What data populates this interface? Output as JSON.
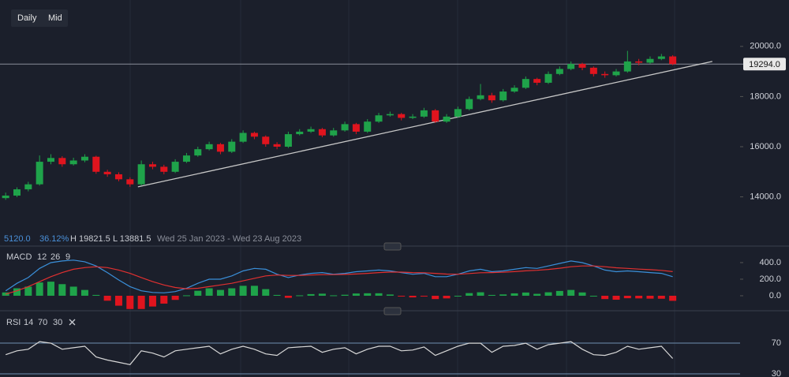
{
  "buttons": [
    "Daily",
    "Mid"
  ],
  "chart_data": [
    {
      "type": "candlestick",
      "up_color": "#1fa34a",
      "down_color": "#e0141e",
      "ylim": [
        12100,
        21850
      ],
      "yticks": [
        {
          "value": 14000,
          "label": "14000.0"
        },
        {
          "value": 16000,
          "label": "16000.0"
        },
        {
          "value": 18000,
          "label": "18000.0"
        },
        {
          "value": 20000,
          "label": "20000.0"
        }
      ],
      "grid": false,
      "last_price": {
        "value": 19294,
        "label": "19294.0"
      },
      "info": {
        "change": "5120.0",
        "change_pct": "36.12%",
        "high": "H 19821.5",
        "low": "L 13881.5",
        "range": "Wed 25 Jan 2023 - Wed 23 Aug 2023"
      },
      "trendline": {
        "x": [
          11.7,
          62.5
        ],
        "y": [
          14400,
          19400
        ],
        "color": "#c8c8c8"
      },
      "candles": [
        [
          13950,
          14170,
          13881.5,
          14050
        ],
        [
          14050,
          14380,
          13990,
          14300
        ],
        [
          14300,
          14600,
          14220,
          14500
        ],
        [
          14500,
          15650,
          14450,
          15400
        ],
        [
          15400,
          15700,
          15300,
          15550
        ],
        [
          15550,
          15620,
          15200,
          15300
        ],
        [
          15300,
          15560,
          15250,
          15450
        ],
        [
          15450,
          15700,
          15380,
          15600
        ],
        [
          15600,
          15640,
          14920,
          15000
        ],
        [
          15000,
          15080,
          14800,
          14900
        ],
        [
          14900,
          14980,
          14620,
          14700
        ],
        [
          14700,
          14780,
          14400,
          14500
        ],
        [
          14500,
          15450,
          14450,
          15300
        ],
        [
          15300,
          15400,
          15100,
          15200
        ],
        [
          15200,
          15280,
          14900,
          15000
        ],
        [
          15000,
          15500,
          14950,
          15400
        ],
        [
          15400,
          15750,
          15350,
          15650
        ],
        [
          15650,
          16000,
          15600,
          15900
        ],
        [
          15900,
          16200,
          15850,
          16100
        ],
        [
          16100,
          16150,
          15700,
          15800
        ],
        [
          15800,
          16300,
          15750,
          16200
        ],
        [
          16200,
          16650,
          16150,
          16550
        ],
        [
          16550,
          16600,
          16300,
          16400
        ],
        [
          16400,
          16450,
          16000,
          16100
        ],
        [
          16100,
          16180,
          15900,
          16000
        ],
        [
          16000,
          16600,
          15950,
          16500
        ],
        [
          16500,
          16700,
          16450,
          16600
        ],
        [
          16600,
          16800,
          16550,
          16700
        ],
        [
          16700,
          16750,
          16380,
          16450
        ],
        [
          16450,
          16750,
          16400,
          16650
        ],
        [
          16650,
          17000,
          16600,
          16900
        ],
        [
          16900,
          16950,
          16500,
          16600
        ],
        [
          16600,
          17100,
          16550,
          17000
        ],
        [
          17000,
          17350,
          16950,
          17250
        ],
        [
          17250,
          17400,
          17200,
          17300
        ],
        [
          17300,
          17350,
          17050,
          17150
        ],
        [
          17150,
          17300,
          17100,
          17200
        ],
        [
          17200,
          17550,
          17150,
          17450
        ],
        [
          17450,
          17500,
          16950,
          17000
        ],
        [
          17000,
          17300,
          16950,
          17200
        ],
        [
          17200,
          17600,
          17150,
          17500
        ],
        [
          17500,
          18000,
          17450,
          17900
        ],
        [
          17900,
          18500,
          17850,
          18050
        ],
        [
          18050,
          18150,
          17750,
          17850
        ],
        [
          17850,
          18300,
          17800,
          18200
        ],
        [
          18200,
          18450,
          18150,
          18350
        ],
        [
          18350,
          18800,
          18300,
          18700
        ],
        [
          18700,
          18750,
          18450,
          18550
        ],
        [
          18550,
          19000,
          18500,
          18900
        ],
        [
          18900,
          19200,
          18850,
          19100
        ],
        [
          19100,
          19400,
          19050,
          19300
        ],
        [
          19300,
          19350,
          19050,
          19150
        ],
        [
          19150,
          19200,
          18800,
          18900
        ],
        [
          18900,
          19000,
          18750,
          18850
        ],
        [
          18850,
          19100,
          18800,
          19000
        ],
        [
          19000,
          19821.5,
          18950,
          19400
        ],
        [
          19400,
          19500,
          19250,
          19350
        ],
        [
          19350,
          19600,
          19300,
          19500
        ],
        [
          19500,
          19700,
          19450,
          19600
        ],
        [
          19600,
          19650,
          19250,
          19294
        ]
      ]
    },
    {
      "type": "macd",
      "label": "MACD",
      "params": [
        12,
        26,
        9
      ],
      "ylim": [
        -162,
        571
      ],
      "yticks": [
        {
          "value": 0,
          "label": "0.0"
        },
        {
          "value": 200,
          "label": "200.0"
        },
        {
          "value": 400,
          "label": "400.0"
        }
      ],
      "grid": false,
      "up_color": "#1fa34a",
      "down_color": "#e0141e",
      "series": [
        {
          "color": "#3a8fd9",
          "values": [
            60,
            150,
            220,
            330,
            400,
            420,
            430,
            410,
            360,
            280,
            190,
            110,
            60,
            40,
            35,
            50,
            90,
            150,
            200,
            200,
            240,
            300,
            330,
            320,
            260,
            220,
            250,
            270,
            280,
            260,
            270,
            290,
            300,
            310,
            300,
            280,
            260,
            270,
            230,
            230,
            260,
            300,
            320,
            290,
            300,
            320,
            340,
            330,
            360,
            390,
            420,
            400,
            360,
            310,
            290,
            300,
            290,
            280,
            270,
            230
          ]
        },
        {
          "color": "#e03030",
          "values": [
            20,
            60,
            110,
            170,
            230,
            280,
            320,
            340,
            350,
            340,
            310,
            270,
            220,
            170,
            130,
            100,
            85,
            90,
            110,
            130,
            150,
            180,
            210,
            240,
            250,
            245,
            245,
            250,
            255,
            255,
            258,
            263,
            270,
            280,
            285,
            285,
            280,
            278,
            270,
            262,
            260,
            268,
            278,
            280,
            284,
            291,
            301,
            307,
            318,
            332,
            350,
            360,
            360,
            350,
            338,
            330,
            322,
            315,
            306,
            291
          ]
        }
      ],
      "histogram": [
        40,
        90,
        110,
        160,
        170,
        140,
        110,
        70,
        10,
        -60,
        -120,
        -160,
        -160,
        -130,
        -95,
        -50,
        5,
        60,
        90,
        70,
        90,
        120,
        120,
        80,
        10,
        -25,
        5,
        20,
        25,
        5,
        12,
        27,
        30,
        30,
        15,
        -5,
        -20,
        -8,
        -40,
        -32,
        0,
        32,
        42,
        10,
        16,
        29,
        39,
        23,
        42,
        58,
        70,
        40,
        0,
        -40,
        -48,
        -30,
        -32,
        -35,
        -36,
        -61
      ]
    },
    {
      "type": "line",
      "label": "RSI",
      "params": [
        14,
        70,
        30
      ],
      "ylim": [
        25.9,
        106
      ],
      "yticks": [
        30,
        70
      ],
      "grid": true,
      "grid_color": "#6f8fb0",
      "series": [
        {
          "color": "#d8d8d8",
          "values": [
            55,
            60,
            62,
            72,
            70,
            62,
            64,
            66,
            52,
            48,
            45,
            42,
            60,
            57,
            52,
            60,
            62,
            64,
            66,
            56,
            62,
            66,
            62,
            56,
            54,
            64,
            65,
            66,
            58,
            62,
            64,
            56,
            62,
            66,
            66,
            60,
            61,
            65,
            54,
            60,
            66,
            70,
            70,
            58,
            66,
            67,
            70,
            62,
            68,
            70,
            72,
            62,
            55,
            54,
            58,
            66,
            62,
            64,
            66,
            50
          ]
        }
      ]
    }
  ]
}
